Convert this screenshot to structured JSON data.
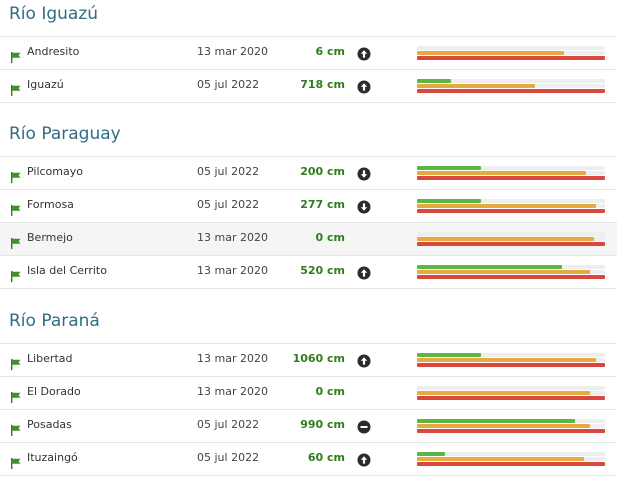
{
  "colors": {
    "title": "#2f6d86",
    "level": "#2f7d1d",
    "green": "#5cb645",
    "orange": "#e8a93f",
    "red": "#d9473d"
  },
  "sections": [
    {
      "title": "Río Iguazú",
      "rows": [
        {
          "station": "Andresito",
          "date": "13 mar 2020",
          "level": "6 cm",
          "trend": "up",
          "green": 0,
          "orange": 0.78,
          "red": 1.0
        },
        {
          "station": "Iguazú",
          "date": "05 jul 2022",
          "level": "718 cm",
          "trend": "up",
          "green": 0.18,
          "orange": 0.63,
          "red": 1.0
        }
      ]
    },
    {
      "title": "Río Paraguay",
      "rows": [
        {
          "station": "Pilcomayo",
          "date": "05 jul 2022",
          "level": "200 cm",
          "trend": "down",
          "green": 0.34,
          "orange": 0.9,
          "red": 1.0
        },
        {
          "station": "Formosa",
          "date": "05 jul 2022",
          "level": "277 cm",
          "trend": "down",
          "green": 0.34,
          "orange": 0.95,
          "red": 1.0
        },
        {
          "station": "Bermejo",
          "date": "13 mar 2020",
          "level": "0 cm",
          "trend": "none",
          "green": 0,
          "orange": 0.94,
          "red": 1.0
        },
        {
          "station": "Isla del Cerrito",
          "date": "13 mar 2020",
          "level": "520 cm",
          "trend": "up",
          "green": 0.77,
          "orange": 0.92,
          "red": 1.0
        }
      ]
    },
    {
      "title": "Río Paraná",
      "rows": [
        {
          "station": "Libertad",
          "date": "13 mar 2020",
          "level": "1060 cm",
          "trend": "up",
          "green": 0.34,
          "orange": 0.95,
          "red": 1.0
        },
        {
          "station": "El Dorado",
          "date": "13 mar 2020",
          "level": "0 cm",
          "trend": "none",
          "green": 0,
          "orange": 0.92,
          "red": 1.0
        },
        {
          "station": "Posadas",
          "date": "05 jul 2022",
          "level": "990 cm",
          "trend": "stable",
          "green": 0.84,
          "orange": 0.92,
          "red": 1.0
        },
        {
          "station": "Ituzaingó",
          "date": "05 jul 2022",
          "level": "60 cm",
          "trend": "up",
          "green": 0.15,
          "orange": 0.89,
          "red": 1.0
        }
      ]
    }
  ]
}
